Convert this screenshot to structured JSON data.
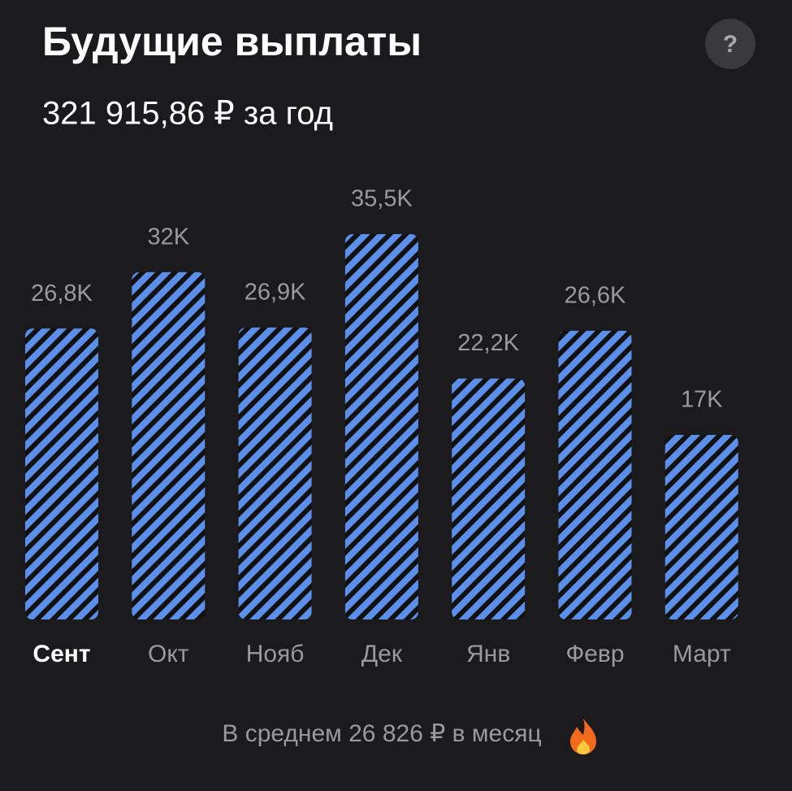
{
  "chart_data": {
    "type": "bar",
    "title": "Будущие выплаты",
    "subtitle": "321 915,86 ₽ за год",
    "help_label": "?",
    "categories": [
      "Сент",
      "Окт",
      "Нояб",
      "Дек",
      "Янв",
      "Февр",
      "Март"
    ],
    "values": [
      26.8,
      32,
      26.9,
      35.5,
      22.2,
      26.6,
      17
    ],
    "value_labels": [
      "26,8K",
      "32K",
      "26,9K",
      "35,5K",
      "22,2K",
      "26,6K",
      "17K"
    ],
    "color": "#5b8fea",
    "selected_index": 0,
    "footer": "В среднем 26 826 ₽ в месяц"
  }
}
